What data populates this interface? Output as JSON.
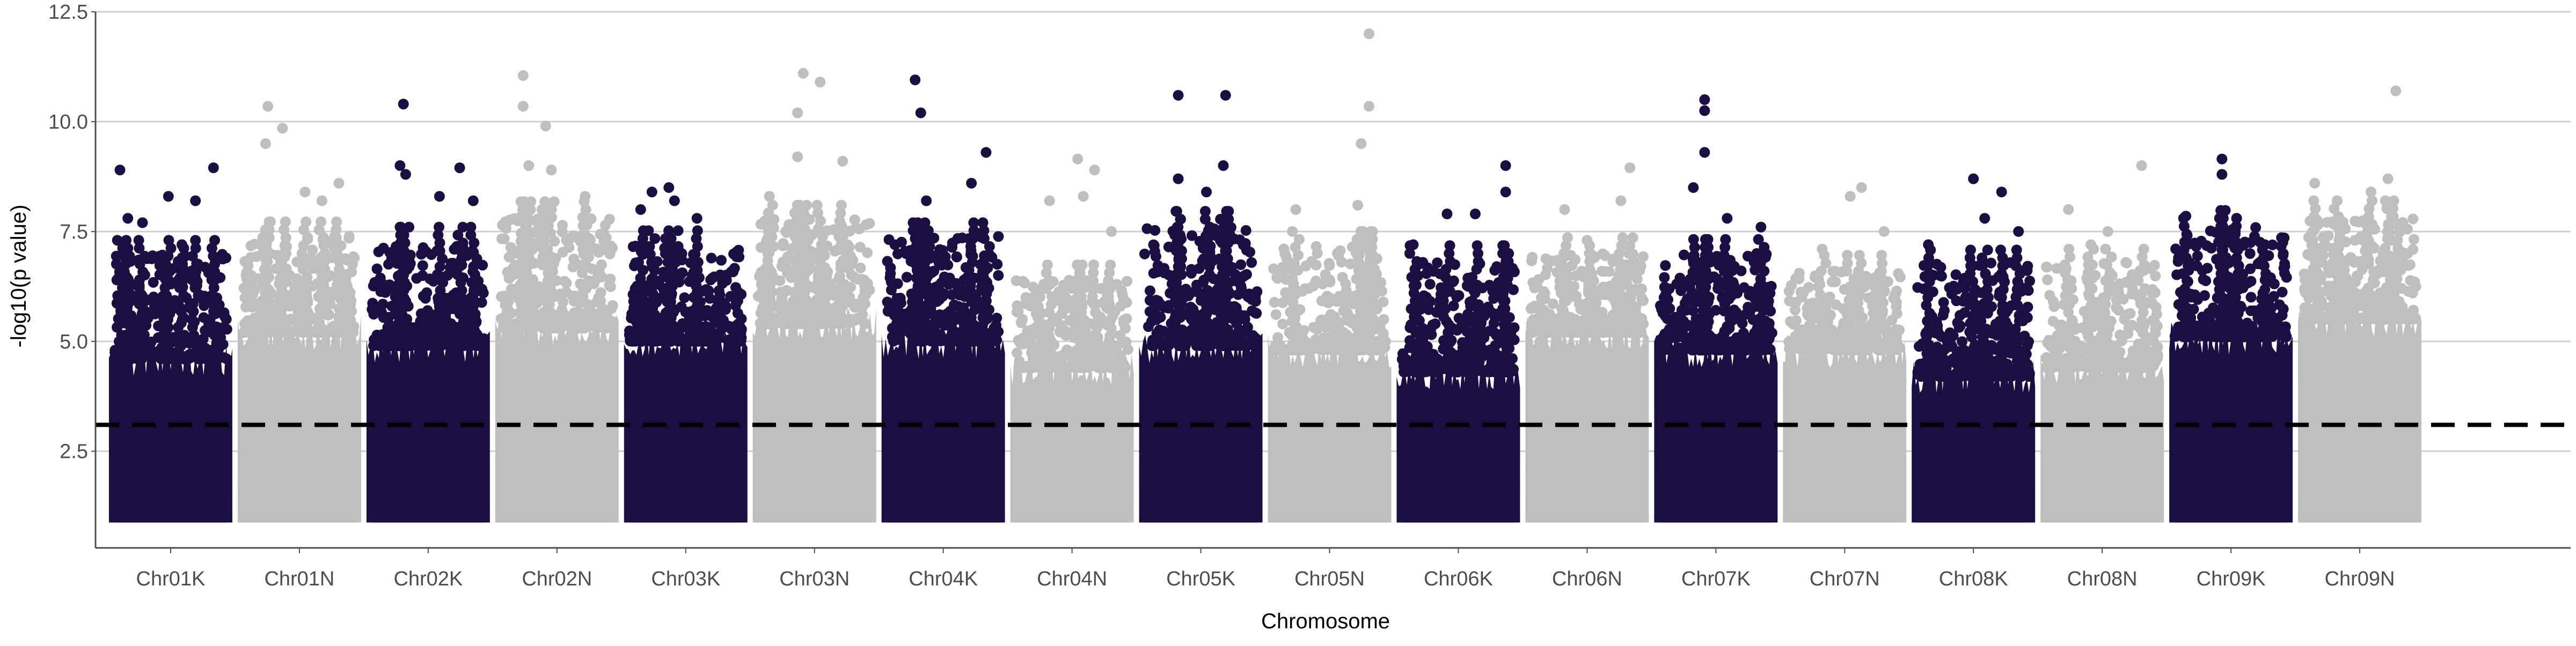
{
  "chart_data": {
    "type": "scatter",
    "subtype": "manhattan",
    "title": "",
    "xlabel": "Chromosome",
    "ylabel": "-log10(p value)",
    "ylim": [
      0.3,
      12.5
    ],
    "y_ticks": [
      2.5,
      5.0,
      7.5,
      10.0,
      12.5
    ],
    "y_tick_labels": [
      "2.5",
      "5.0",
      "7.5",
      "10.0",
      "12.5"
    ],
    "grid": "horizontal major lines",
    "legend": "none",
    "threshold": {
      "y": 3.1,
      "style": "dashed",
      "color": "#000000"
    },
    "colors": {
      "K": "#1a0f40",
      "N": "#bebebe"
    },
    "base_y_min": 1.0,
    "categories": [
      "Chr01K",
      "Chr01N",
      "Chr02K",
      "Chr02N",
      "Chr03K",
      "Chr03N",
      "Chr04K",
      "Chr04N",
      "Chr05K",
      "Chr05N",
      "Chr06K",
      "Chr06N",
      "Chr07K",
      "Chr07N",
      "Chr08K",
      "Chr08N",
      "Chr09K",
      "Chr09N"
    ],
    "series": [
      {
        "category": "Chr01K",
        "color": "#1a0f40",
        "band_top": 4.6,
        "scatter_top": 7.0,
        "peaks": [
          [
            0.05,
            8.9
          ],
          [
            0.12,
            7.8
          ],
          [
            0.25,
            7.7
          ],
          [
            0.48,
            8.3
          ],
          [
            0.72,
            8.2
          ],
          [
            0.88,
            8.95
          ],
          [
            0.6,
            7.2
          ]
        ]
      },
      {
        "category": "Chr01N",
        "color": "#bebebe",
        "band_top": 5.2,
        "scatter_top": 7.4,
        "peaks": [
          [
            0.22,
            10.35
          ],
          [
            0.2,
            9.5
          ],
          [
            0.35,
            9.85
          ],
          [
            0.55,
            8.4
          ],
          [
            0.85,
            8.6
          ],
          [
            0.7,
            8.2
          ]
        ]
      },
      {
        "category": "Chr02K",
        "color": "#1a0f40",
        "band_top": 4.9,
        "scatter_top": 7.2,
        "peaks": [
          [
            0.28,
            10.4
          ],
          [
            0.25,
            9.0
          ],
          [
            0.3,
            8.8
          ],
          [
            0.78,
            8.95
          ],
          [
            0.6,
            8.3
          ],
          [
            0.9,
            8.2
          ]
        ]
      },
      {
        "category": "Chr02N",
        "color": "#bebebe",
        "band_top": 5.3,
        "scatter_top": 7.8,
        "peaks": [
          [
            0.2,
            11.05
          ],
          [
            0.2,
            10.35
          ],
          [
            0.4,
            9.9
          ],
          [
            0.45,
            8.9
          ],
          [
            0.25,
            9.0
          ],
          [
            0.75,
            8.3
          ]
        ]
      },
      {
        "category": "Chr03K",
        "color": "#1a0f40",
        "band_top": 5.0,
        "scatter_top": 7.2,
        "peaks": [
          [
            0.2,
            8.4
          ],
          [
            0.35,
            8.5
          ],
          [
            0.4,
            8.2
          ],
          [
            0.6,
            7.8
          ],
          [
            0.1,
            8.0
          ]
        ]
      },
      {
        "category": "Chr03N",
        "color": "#bebebe",
        "band_top": 5.4,
        "scatter_top": 7.8,
        "peaks": [
          [
            0.4,
            11.1
          ],
          [
            0.55,
            10.9
          ],
          [
            0.35,
            10.2
          ],
          [
            0.35,
            9.2
          ],
          [
            0.75,
            9.1
          ],
          [
            0.1,
            8.3
          ]
        ]
      },
      {
        "category": "Chr04K",
        "color": "#1a0f40",
        "band_top": 5.0,
        "scatter_top": 7.4,
        "peaks": [
          [
            0.25,
            10.95
          ],
          [
            0.3,
            10.2
          ],
          [
            0.88,
            9.3
          ],
          [
            0.75,
            8.6
          ],
          [
            0.35,
            8.2
          ]
        ]
      },
      {
        "category": "Chr04N",
        "color": "#bebebe",
        "band_top": 4.4,
        "scatter_top": 6.4,
        "peaks": [
          [
            0.3,
            8.2
          ],
          [
            0.55,
            9.15
          ],
          [
            0.7,
            8.9
          ],
          [
            0.6,
            8.3
          ],
          [
            0.85,
            7.5
          ]
        ]
      },
      {
        "category": "Chr05K",
        "color": "#1a0f40",
        "band_top": 4.9,
        "scatter_top": 7.6,
        "peaks": [
          [
            0.3,
            10.6
          ],
          [
            0.72,
            10.6
          ],
          [
            0.7,
            9.0
          ],
          [
            0.3,
            8.7
          ],
          [
            0.55,
            8.4
          ]
        ]
      },
      {
        "category": "Chr05N",
        "color": "#bebebe",
        "band_top": 4.8,
        "scatter_top": 7.2,
        "peaks": [
          [
            0.85,
            12.0
          ],
          [
            0.85,
            10.35
          ],
          [
            0.78,
            9.5
          ],
          [
            0.75,
            8.1
          ],
          [
            0.2,
            8.0
          ]
        ]
      },
      {
        "category": "Chr06K",
        "color": "#1a0f40",
        "band_top": 4.3,
        "scatter_top": 6.8,
        "peaks": [
          [
            0.92,
            9.0
          ],
          [
            0.92,
            8.4
          ],
          [
            0.65,
            7.9
          ],
          [
            0.4,
            7.9
          ],
          [
            0.1,
            7.2
          ]
        ]
      },
      {
        "category": "Chr06N",
        "color": "#bebebe",
        "band_top": 5.2,
        "scatter_top": 7.0,
        "peaks": [
          [
            0.88,
            8.95
          ],
          [
            0.8,
            8.2
          ],
          [
            0.3,
            8.0
          ],
          [
            0.5,
            7.3
          ]
        ]
      },
      {
        "category": "Chr07K",
        "color": "#1a0f40",
        "band_top": 4.8,
        "scatter_top": 7.0,
        "peaks": [
          [
            0.4,
            10.5
          ],
          [
            0.4,
            10.25
          ],
          [
            0.4,
            9.3
          ],
          [
            0.3,
            8.5
          ],
          [
            0.6,
            7.8
          ],
          [
            0.9,
            7.6
          ]
        ]
      },
      {
        "category": "Chr07N",
        "color": "#bebebe",
        "band_top": 4.8,
        "scatter_top": 6.6,
        "peaks": [
          [
            0.55,
            8.3
          ],
          [
            0.65,
            8.5
          ],
          [
            0.85,
            7.5
          ],
          [
            0.3,
            7.1
          ]
        ]
      },
      {
        "category": "Chr08K",
        "color": "#1a0f40",
        "band_top": 4.2,
        "scatter_top": 6.8,
        "peaks": [
          [
            0.5,
            8.7
          ],
          [
            0.75,
            8.4
          ],
          [
            0.6,
            7.8
          ],
          [
            0.9,
            7.5
          ],
          [
            0.1,
            7.2
          ]
        ]
      },
      {
        "category": "Chr08N",
        "color": "#bebebe",
        "band_top": 4.4,
        "scatter_top": 6.8,
        "peaks": [
          [
            0.2,
            8.0
          ],
          [
            0.85,
            9.0
          ],
          [
            0.55,
            7.5
          ],
          [
            0.4,
            7.2
          ]
        ]
      },
      {
        "category": "Chr09K",
        "color": "#1a0f40",
        "band_top": 5.1,
        "scatter_top": 7.6,
        "peaks": [
          [
            0.42,
            9.15
          ],
          [
            0.42,
            8.8
          ],
          [
            0.1,
            7.85
          ],
          [
            0.55,
            7.8
          ],
          [
            0.8,
            7.2
          ]
        ]
      },
      {
        "category": "Chr09N",
        "color": "#bebebe",
        "band_top": 5.5,
        "scatter_top": 7.8,
        "peaks": [
          [
            0.82,
            10.7
          ],
          [
            0.75,
            8.7
          ],
          [
            0.6,
            8.4
          ],
          [
            0.3,
            8.2
          ],
          [
            0.1,
            8.6
          ]
        ]
      }
    ]
  }
}
